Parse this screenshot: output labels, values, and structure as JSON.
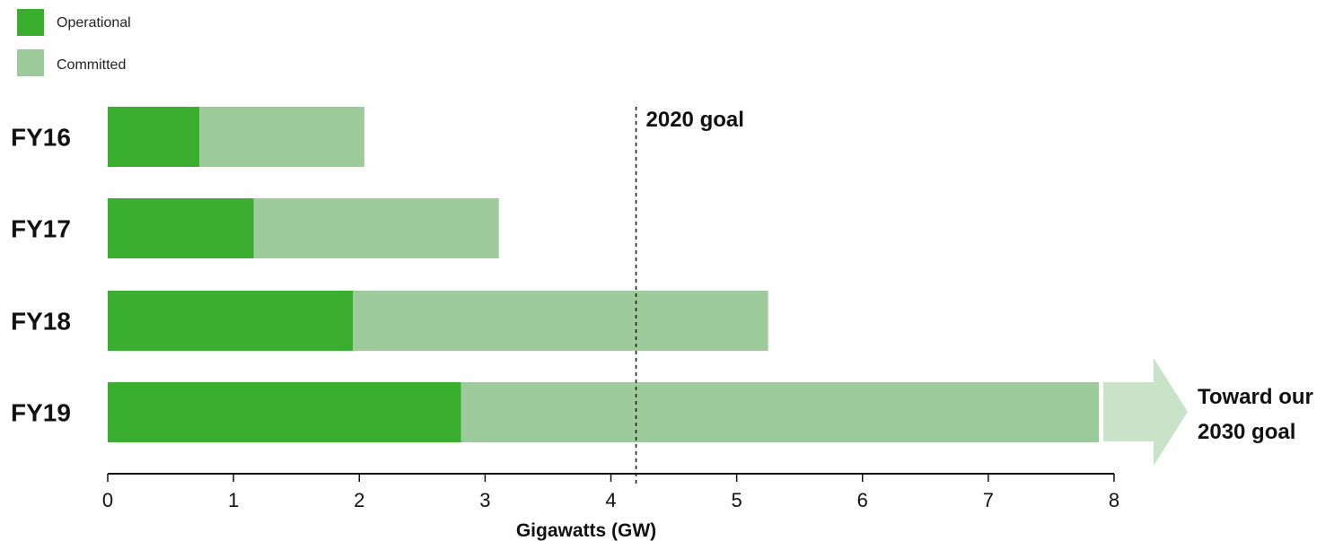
{
  "chart_data": {
    "type": "bar",
    "orientation": "horizontal",
    "stacked": true,
    "categories": [
      "FY16",
      "FY17",
      "FY18",
      "FY19"
    ],
    "series": [
      {
        "name": "Operational",
        "color": "#3aae2f",
        "values": [
          0.73,
          1.16,
          1.95,
          2.81
        ]
      },
      {
        "name": "Committed",
        "color": "#9dcb9c",
        "values": [
          1.31,
          1.95,
          3.3,
          5.07
        ]
      }
    ],
    "xlabel": "Gigawatts (GW)",
    "xlim": [
      0,
      8
    ],
    "xticks": [
      "0",
      "1",
      "2",
      "3",
      "4",
      "5",
      "6",
      "7",
      "8"
    ],
    "legend_position": "top-left",
    "goal_line": {
      "label": "2020 goal",
      "value": 4.2
    },
    "arrow_annotation": {
      "line1": "Toward our",
      "line2": "2030 goal",
      "color": "#c8e3c7"
    },
    "grid": false
  }
}
